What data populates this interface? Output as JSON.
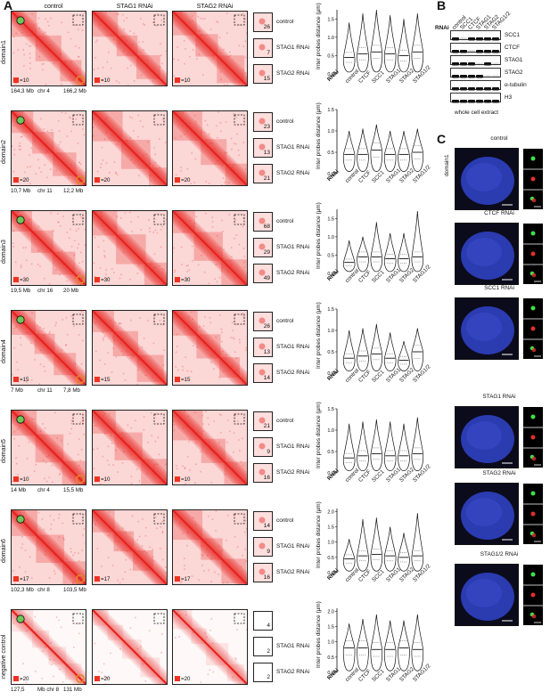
{
  "panels": {
    "a": "A",
    "b": "B",
    "c": "C"
  },
  "panel_a": {
    "col_headers": [
      "control",
      "STAG1 RNAi",
      "STAG2 RNAi"
    ],
    "rows": [
      {
        "label": "domain1",
        "coords": [
          "164,3 Mb",
          "chr 4",
          "166,2 Mb"
        ],
        "scale": [
          "=10",
          "=10",
          "=10"
        ],
        "zoom": [
          {
            "label": "control",
            "value": "26"
          },
          {
            "label": "STAG1 RNAi",
            "value": "7"
          },
          {
            "label": "STAG2 RNAi",
            "value": "15"
          }
        ]
      },
      {
        "label": "domain2",
        "coords": [
          "10,7 Mb",
          "chr 11",
          "12,2 Mb"
        ],
        "scale": [
          "=20",
          "=20",
          "=20"
        ],
        "zoom": [
          {
            "label": "control",
            "value": "23"
          },
          {
            "label": "STAG1 RNAi",
            "value": "13"
          },
          {
            "label": "STAG2 RNAi",
            "value": "21"
          }
        ]
      },
      {
        "label": "domain3",
        "coords": [
          "19,5 Mb",
          "chr 16",
          "20  Mb"
        ],
        "scale": [
          "=30",
          "=30",
          "=30"
        ],
        "zoom": [
          {
            "label": "control",
            "value": "68"
          },
          {
            "label": "STAG1 RNAi",
            "value": "29"
          },
          {
            "label": "STAG2 RNAi",
            "value": "49"
          }
        ]
      },
      {
        "label": "domain4",
        "coords": [
          "7 Mb",
          "chr 11",
          "7,8 Mb"
        ],
        "scale": [
          "=15",
          "=15",
          "=15"
        ],
        "zoom": [
          {
            "label": "control",
            "value": "26"
          },
          {
            "label": "STAG1 RNAi",
            "value": "13"
          },
          {
            "label": "STAG2 RNAi",
            "value": "14"
          }
        ]
      },
      {
        "label": "domain5",
        "coords": [
          "14 Mb",
          "chr 4",
          "15,5 Mb"
        ],
        "scale": [
          "=10",
          "=10",
          "=10"
        ],
        "zoom": [
          {
            "label": "control",
            "value": "21"
          },
          {
            "label": "STAG1 RNAi",
            "value": "9"
          },
          {
            "label": "STAG2 RNAi",
            "value": "16"
          }
        ]
      },
      {
        "label": "domain6",
        "coords": [
          "102,3 Mb",
          "chr 8",
          "103,5 Mb"
        ],
        "scale": [
          "=17",
          "=17",
          "=17"
        ],
        "zoom": [
          {
            "label": "control",
            "value": "14"
          },
          {
            "label": "STAG1 RNAi",
            "value": "9"
          },
          {
            "label": "STAG2 RNAi",
            "value": "16"
          }
        ]
      },
      {
        "label": "negative control",
        "coords": [
          "127,5",
          "Mb chr 8",
          "131 Mb"
        ],
        "scale": [
          "=20",
          "=20",
          "=20"
        ],
        "zoom": [
          {
            "label": "",
            "value": "4"
          },
          {
            "label": "STAG1 RNAi",
            "value": "2"
          },
          {
            "label": "STAG2 RNAi",
            "value": "2"
          }
        ]
      }
    ]
  },
  "chart_data": [
    {
      "type": "violin",
      "ylabel": "Inter probes distance (µm)",
      "xlabel_prefix": "RNAi",
      "categories": [
        "control",
        "CTCF",
        "SCC1",
        "STAG1",
        "STAG2",
        "STAG1/2"
      ],
      "yticks": [
        "0.0",
        "0.5",
        "1.0",
        "1.5"
      ],
      "ylim": [
        0,
        1.75
      ],
      "medians": [
        0.45,
        0.55,
        0.6,
        0.55,
        0.5,
        0.6
      ],
      "maxima": [
        1.4,
        1.65,
        1.75,
        1.6,
        1.5,
        1.65
      ]
    },
    {
      "type": "violin",
      "ylabel": "Inter probes distance (µm)",
      "xlabel_prefix": "RNAi",
      "categories": [
        "control",
        "CTCF",
        "SCC1",
        "STAG1",
        "STAG2",
        "STAG1/2"
      ],
      "yticks": [
        "0.0",
        "0.5",
        "1.0",
        "1.5"
      ],
      "ylim": [
        0,
        1.5
      ],
      "medians": [
        0.45,
        0.45,
        0.55,
        0.45,
        0.45,
        0.5
      ],
      "maxima": [
        1.0,
        1.05,
        1.15,
        1.0,
        1.0,
        1.05
      ]
    },
    {
      "type": "violin",
      "ylabel": "Inter probes distance (µm)",
      "xlabel_prefix": "RNAi",
      "categories": [
        "control",
        "CTCF",
        "SCC1",
        "STAG1",
        "STAG2",
        "STAG1/2"
      ],
      "yticks": [
        "0.0",
        "0.5",
        "1.0",
        "1.5"
      ],
      "ylim": [
        0,
        1.75
      ],
      "medians": [
        0.3,
        0.45,
        0.45,
        0.4,
        0.4,
        0.45
      ],
      "maxima": [
        0.9,
        1.0,
        1.4,
        1.1,
        1.1,
        1.7
      ]
    },
    {
      "type": "violin",
      "ylabel": "Inter probes distance (µm)",
      "xlabel_prefix": "RNAi",
      "categories": [
        "control",
        "CTCF",
        "SCC1",
        "STAG1",
        "STAG2",
        "STAG1/2"
      ],
      "yticks": [
        "0.0",
        "0.5",
        "1.0",
        "1.5"
      ],
      "ylim": [
        0,
        1.5
      ],
      "medians": [
        0.35,
        0.4,
        0.45,
        0.35,
        0.3,
        0.5
      ],
      "maxima": [
        1.0,
        1.05,
        1.15,
        0.95,
        0.75,
        1.05
      ]
    },
    {
      "type": "violin",
      "ylabel": "Inter probes distance (µm)",
      "xlabel_prefix": "RNAi",
      "categories": [
        "control",
        "CTCF",
        "SCC1",
        "STAG1",
        "STAG2",
        "STAG1/2"
      ],
      "yticks": [
        "0.0",
        "0.5",
        "1.0",
        "1.5"
      ],
      "ylim": [
        0,
        1.5
      ],
      "medians": [
        0.35,
        0.4,
        0.45,
        0.4,
        0.4,
        0.45
      ],
      "maxima": [
        1.15,
        1.2,
        1.25,
        1.2,
        1.15,
        1.3
      ]
    },
    {
      "type": "violin",
      "ylabel": "Inter probes distance (µm)",
      "xlabel_prefix": "RNAi",
      "categories": [
        "control",
        "CTCF",
        "SCC1",
        "STAG1",
        "STAG2",
        "STAG1/2"
      ],
      "yticks": [
        "0.0",
        "0.5",
        "1.0",
        "1.5",
        "2.0"
      ],
      "ylim": [
        0,
        2.1
      ],
      "medians": [
        0.45,
        0.55,
        0.6,
        0.55,
        0.5,
        0.55
      ],
      "maxima": [
        1.1,
        1.75,
        1.8,
        1.5,
        1.3,
        1.95
      ]
    },
    {
      "type": "violin",
      "ylabel": "Inter probes distance (µm)",
      "xlabel_prefix": "RNAi",
      "categories": [
        "control",
        "CTCF",
        "SCC1",
        "STAG1",
        "STAG2",
        "STAG1/2"
      ],
      "yticks": [
        "0.0",
        "0.5",
        "1.0",
        "1.5",
        "2.0"
      ],
      "ylim": [
        0,
        2.1
      ],
      "medians": [
        0.8,
        0.8,
        0.75,
        0.75,
        0.8,
        0.75
      ],
      "maxima": [
        1.6,
        1.75,
        1.9,
        1.7,
        1.7,
        1.9
      ]
    }
  ],
  "panel_b": {
    "rnai_label": "RNAi",
    "lanes": [
      "control",
      "SCC1",
      "CTCF",
      "STAG1",
      "STAG2",
      "STAG1/2"
    ],
    "bands": [
      "SCC1",
      "CTCF",
      "STAG1",
      "STAG2",
      "α-tubulin",
      "H3"
    ],
    "caption": "whole cell extract"
  },
  "panel_c": {
    "row_label": "domain1",
    "cells": [
      "control",
      "CTCF RNAi",
      "SCC1 RNAi",
      "STAG1 RNAi",
      "STAG2 RNAi",
      "STAG1/2 RNAi"
    ]
  },
  "colors": {
    "hic": "#e8231e",
    "green_anchor": "#6ec65a",
    "orange_anchor": "#e08a2a",
    "nucleus": "#2b3bb0"
  }
}
